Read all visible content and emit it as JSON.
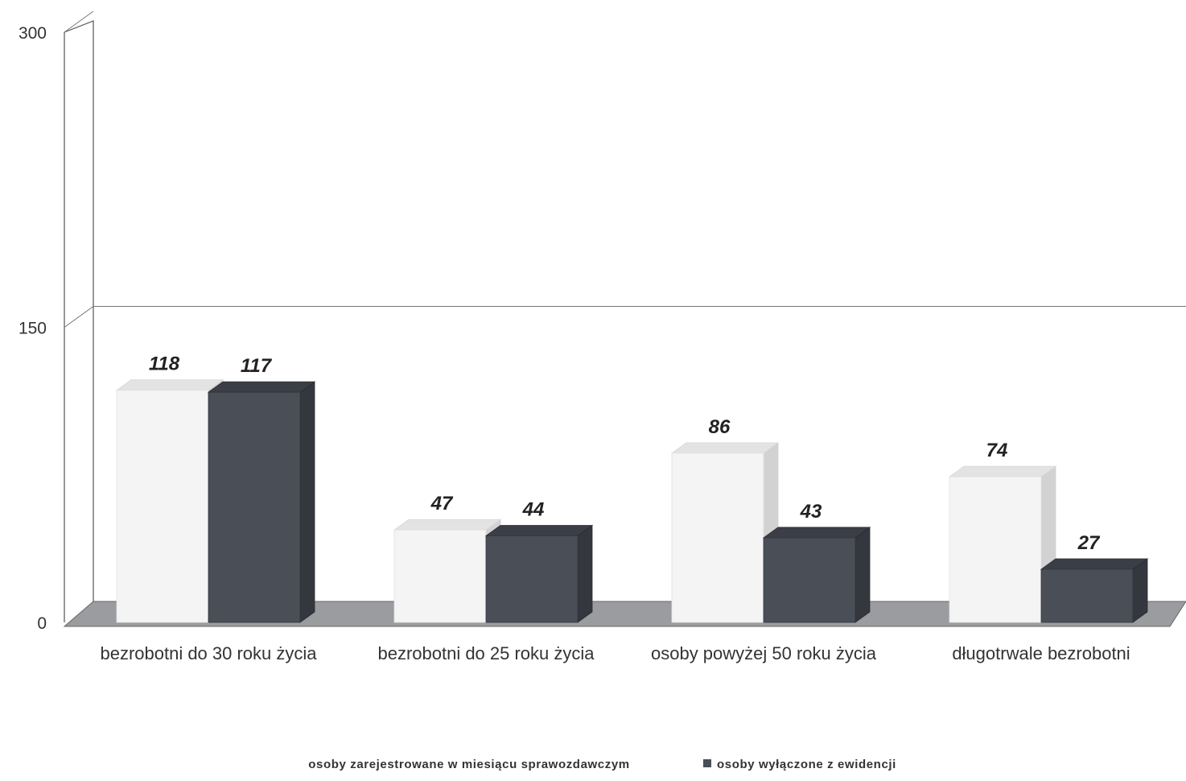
{
  "chart_data": {
    "type": "bar",
    "style": "3d-clustered",
    "categories": [
      "bezrobotni do 30 roku życia",
      "bezrobotni do 25 roku życia",
      "osoby powyżej 50 roku życia",
      "długotrwale bezrobotni"
    ],
    "series": [
      {
        "name": "osoby zarejestrowane w miesiącu sprawozdawczym",
        "values": [
          118,
          47,
          86,
          74
        ],
        "color": "#f4f4f4"
      },
      {
        "name": "osoby wyłączone z ewidencji",
        "values": [
          117,
          44,
          43,
          27
        ],
        "color": "#4a4e57"
      }
    ],
    "ylim": [
      0,
      300
    ],
    "yticks": [
      "0",
      "150",
      "300"
    ],
    "grid": true,
    "legend": "bottom"
  }
}
